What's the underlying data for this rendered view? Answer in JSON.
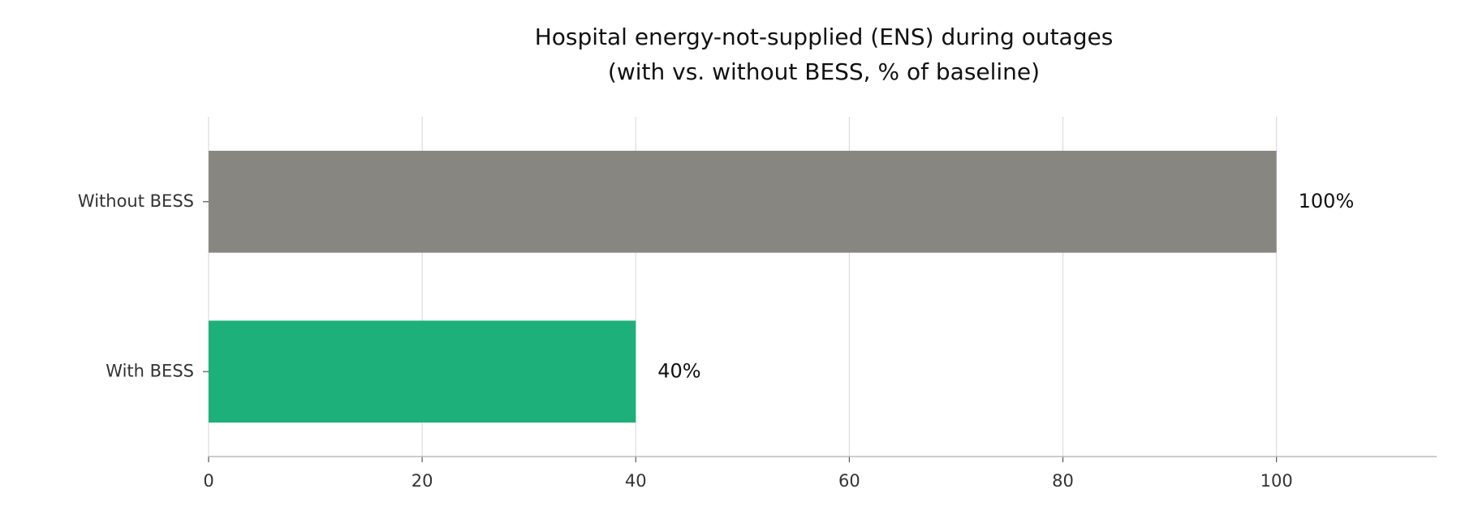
{
  "chart_data": {
    "type": "barh",
    "title": [
      "Hospital energy-not-supplied (ENS) during outages",
      "(with vs. without BESS, % of baseline)"
    ],
    "categories": [
      "Without BESS",
      "With BESS"
    ],
    "values": [
      100,
      40
    ],
    "value_labels": [
      "100%",
      "40%"
    ],
    "colors": [
      "#878680",
      "#1db07a"
    ],
    "xlim": [
      0,
      115
    ],
    "xticks": [
      0,
      20,
      40,
      60,
      80,
      100
    ],
    "grid": true
  }
}
